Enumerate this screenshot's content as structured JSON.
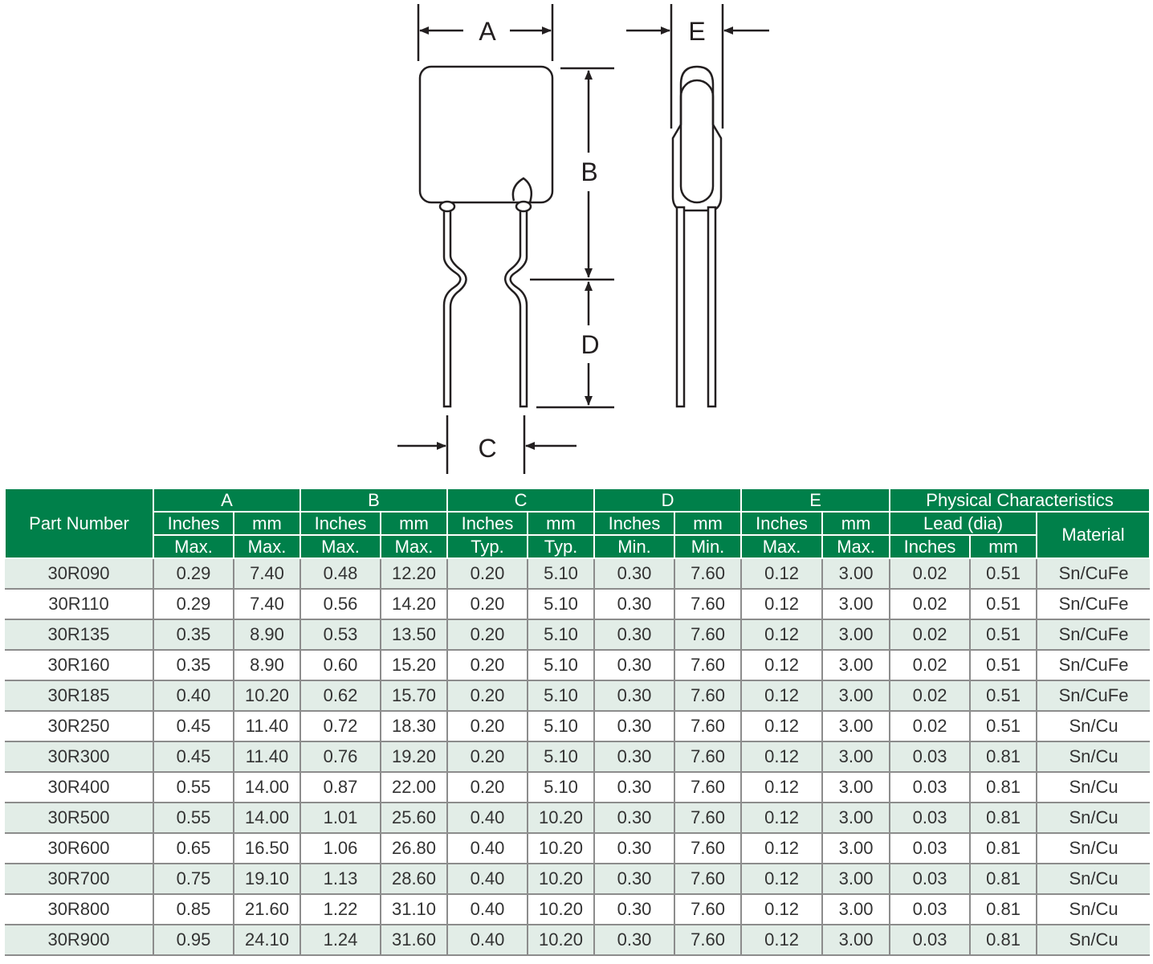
{
  "drawing": {
    "labels": {
      "a": "A",
      "b": "B",
      "c": "C",
      "d": "D",
      "e": "E"
    }
  },
  "table": {
    "header": {
      "part_number": "Part Number",
      "groups": [
        "A",
        "B",
        "C",
        "D",
        "E"
      ],
      "physical": "Physical Characteristics",
      "units": [
        "Inches",
        "mm",
        "Inches",
        "mm",
        "Inches",
        "mm",
        "Inches",
        "mm",
        "Inches",
        "mm"
      ],
      "qualifiers": [
        "Max.",
        "Max.",
        "Max.",
        "Max.",
        "Typ.",
        "Typ.",
        "Min.",
        "Min.",
        "Max.",
        "Max."
      ],
      "lead": "Lead (dia)",
      "lead_units": [
        "Inches",
        "mm"
      ],
      "material": "Material"
    },
    "colors": {
      "header_bg": "#00804a",
      "row_alt": "#e2ede7"
    },
    "rows": [
      [
        "30R090",
        "0.29",
        "7.40",
        "0.48",
        "12.20",
        "0.20",
        "5.10",
        "0.30",
        "7.60",
        "0.12",
        "3.00",
        "0.02",
        "0.51",
        "Sn/CuFe"
      ],
      [
        "30R110",
        "0.29",
        "7.40",
        "0.56",
        "14.20",
        "0.20",
        "5.10",
        "0.30",
        "7.60",
        "0.12",
        "3.00",
        "0.02",
        "0.51",
        "Sn/CuFe"
      ],
      [
        "30R135",
        "0.35",
        "8.90",
        "0.53",
        "13.50",
        "0.20",
        "5.10",
        "0.30",
        "7.60",
        "0.12",
        "3.00",
        "0.02",
        "0.51",
        "Sn/CuFe"
      ],
      [
        "30R160",
        "0.35",
        "8.90",
        "0.60",
        "15.20",
        "0.20",
        "5.10",
        "0.30",
        "7.60",
        "0.12",
        "3.00",
        "0.02",
        "0.51",
        "Sn/CuFe"
      ],
      [
        "30R185",
        "0.40",
        "10.20",
        "0.62",
        "15.70",
        "0.20",
        "5.10",
        "0.30",
        "7.60",
        "0.12",
        "3.00",
        "0.02",
        "0.51",
        "Sn/CuFe"
      ],
      [
        "30R250",
        "0.45",
        "11.40",
        "0.72",
        "18.30",
        "0.20",
        "5.10",
        "0.30",
        "7.60",
        "0.12",
        "3.00",
        "0.02",
        "0.51",
        "Sn/Cu"
      ],
      [
        "30R300",
        "0.45",
        "11.40",
        "0.76",
        "19.20",
        "0.20",
        "5.10",
        "0.30",
        "7.60",
        "0.12",
        "3.00",
        "0.03",
        "0.81",
        "Sn/Cu"
      ],
      [
        "30R400",
        "0.55",
        "14.00",
        "0.87",
        "22.00",
        "0.20",
        "5.10",
        "0.30",
        "7.60",
        "0.12",
        "3.00",
        "0.03",
        "0.81",
        "Sn/Cu"
      ],
      [
        "30R500",
        "0.55",
        "14.00",
        "1.01",
        "25.60",
        "0.40",
        "10.20",
        "0.30",
        "7.60",
        "0.12",
        "3.00",
        "0.03",
        "0.81",
        "Sn/Cu"
      ],
      [
        "30R600",
        "0.65",
        "16.50",
        "1.06",
        "26.80",
        "0.40",
        "10.20",
        "0.30",
        "7.60",
        "0.12",
        "3.00",
        "0.03",
        "0.81",
        "Sn/Cu"
      ],
      [
        "30R700",
        "0.75",
        "19.10",
        "1.13",
        "28.60",
        "0.40",
        "10.20",
        "0.30",
        "7.60",
        "0.12",
        "3.00",
        "0.03",
        "0.81",
        "Sn/Cu"
      ],
      [
        "30R800",
        "0.85",
        "21.60",
        "1.22",
        "31.10",
        "0.40",
        "10.20",
        "0.30",
        "7.60",
        "0.12",
        "3.00",
        "0.03",
        "0.81",
        "Sn/Cu"
      ],
      [
        "30R900",
        "0.95",
        "24.10",
        "1.24",
        "31.60",
        "0.40",
        "10.20",
        "0.30",
        "7.60",
        "0.12",
        "3.00",
        "0.03",
        "0.81",
        "Sn/Cu"
      ]
    ]
  }
}
